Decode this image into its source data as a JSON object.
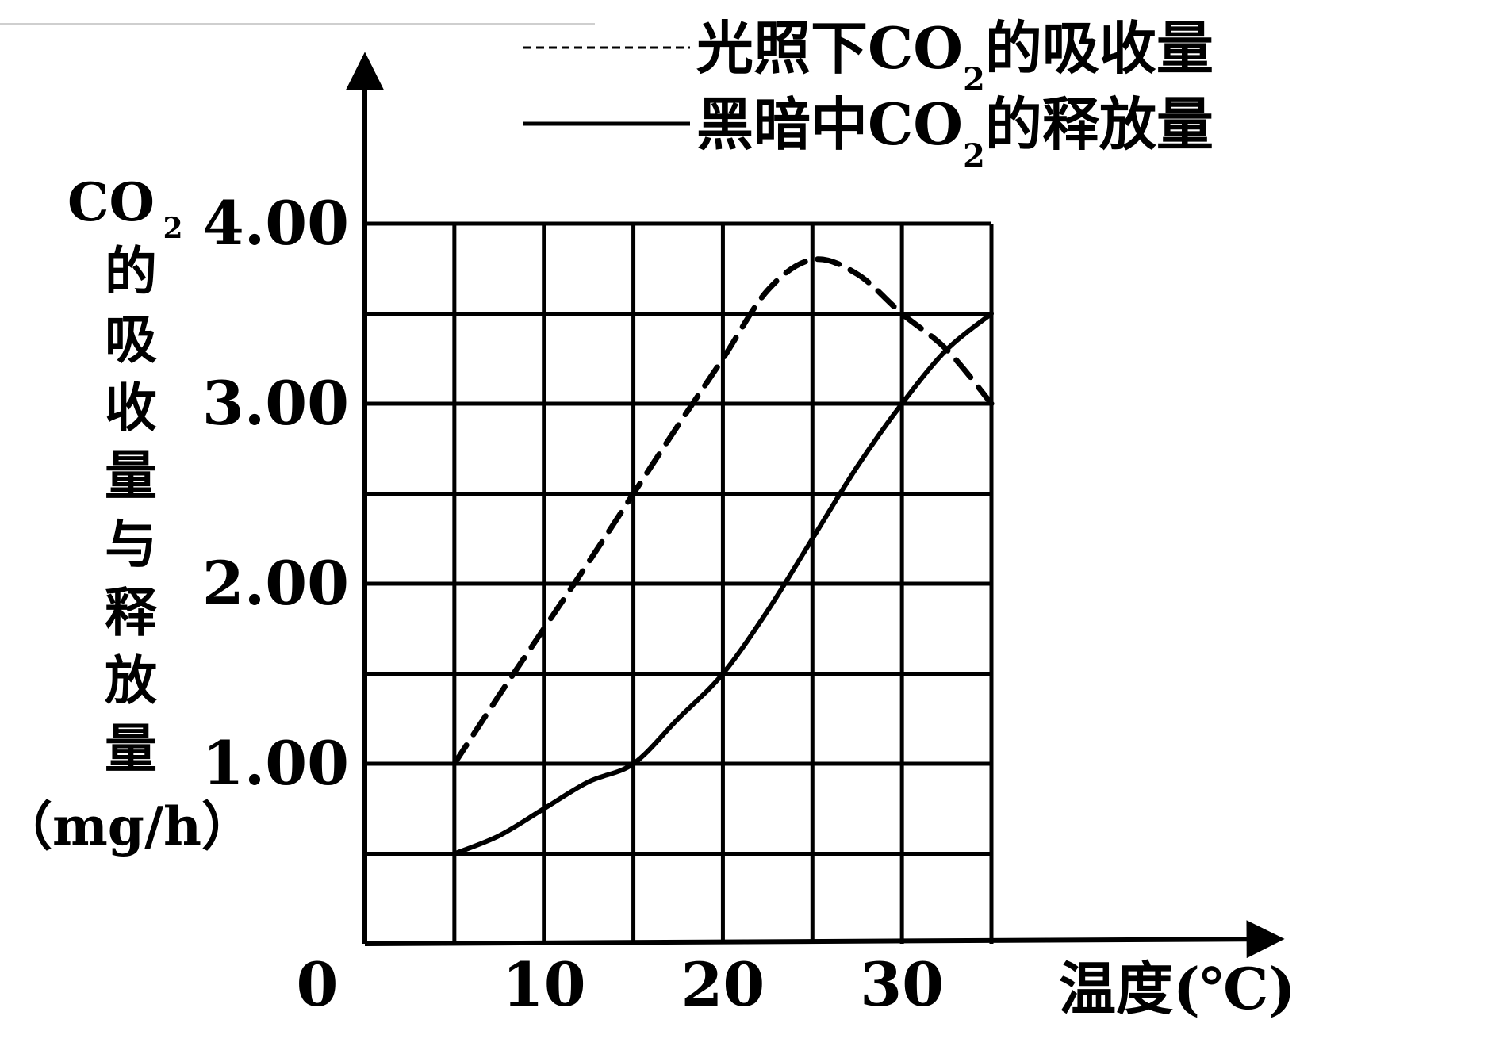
{
  "chart_data": {
    "type": "line",
    "ylabel": {
      "line1": "CO",
      "sub": "2",
      "chars": [
        "的",
        "吸",
        "收",
        "量",
        "与",
        "释",
        "放",
        "量"
      ],
      "unit": "（mg/h）"
    },
    "xlabel": "温度(℃)",
    "origin_label": "0",
    "xlim": [
      0,
      35
    ],
    "ylim": [
      0,
      4
    ],
    "x_ticks": [
      {
        "value": 10,
        "label": "10"
      },
      {
        "value": 20,
        "label": "20"
      },
      {
        "value": 30,
        "label": "30"
      }
    ],
    "y_ticks": [
      {
        "value": 1,
        "label": "1.00"
      },
      {
        "value": 2,
        "label": "2.00"
      },
      {
        "value": 3,
        "label": "3.00"
      },
      {
        "value": 4,
        "label": "4.00"
      }
    ],
    "x_grid": [
      5,
      10,
      15,
      20,
      25,
      30,
      35
    ],
    "y_grid": [
      0.5,
      1,
      1.5,
      2,
      2.5,
      3,
      3.5,
      4
    ],
    "grid": true,
    "legend_position": "top-right",
    "series": [
      {
        "name": "光照下CO",
        "name_sub": "2",
        "name_tail": "的吸收量",
        "style": "dashed",
        "x": [
          5,
          7.5,
          10,
          12.5,
          15,
          17.5,
          20,
          22.5,
          25,
          27.5,
          30,
          32.5,
          35
        ],
        "y": [
          1.0,
          1.38,
          1.75,
          2.12,
          2.5,
          2.88,
          3.25,
          3.63,
          3.8,
          3.72,
          3.5,
          3.3,
          3.0
        ]
      },
      {
        "name": "黑暗中CO",
        "name_sub": "2",
        "name_tail": "的释放量",
        "style": "solid",
        "x": [
          5,
          7.5,
          10,
          12.5,
          15,
          17.5,
          20,
          22.5,
          25,
          27.5,
          30,
          32.5,
          35
        ],
        "y": [
          0.5,
          0.6,
          0.75,
          0.9,
          1.0,
          1.25,
          1.5,
          1.85,
          2.25,
          2.65,
          3.0,
          3.3,
          3.5
        ]
      }
    ]
  }
}
